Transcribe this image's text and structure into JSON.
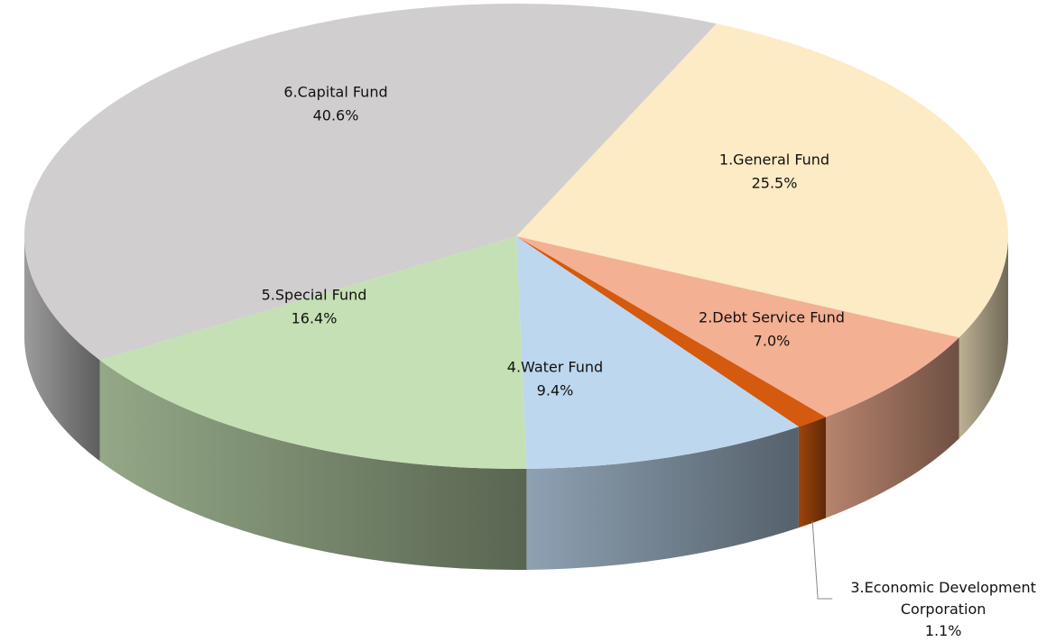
{
  "chart_data": {
    "type": "pie",
    "categories": [
      "1.General Fund",
      "2.Debt Service Fund",
      "3.Economic Development Corporation",
      "4.Water Fund",
      "5.Special Fund",
      "6.Capital Fund"
    ],
    "values": [
      25.5,
      7.0,
      1.1,
      9.4,
      16.4,
      40.6
    ],
    "value_labels": [
      "25.5%",
      "7.0%",
      "1.1%",
      "9.4%",
      "16.4%",
      "40.6%"
    ],
    "colors": [
      "#fcebc4",
      "#f4b093",
      "#d35a0f",
      "#bdd7ee",
      "#c5e0b4",
      "#d0cece"
    ]
  }
}
